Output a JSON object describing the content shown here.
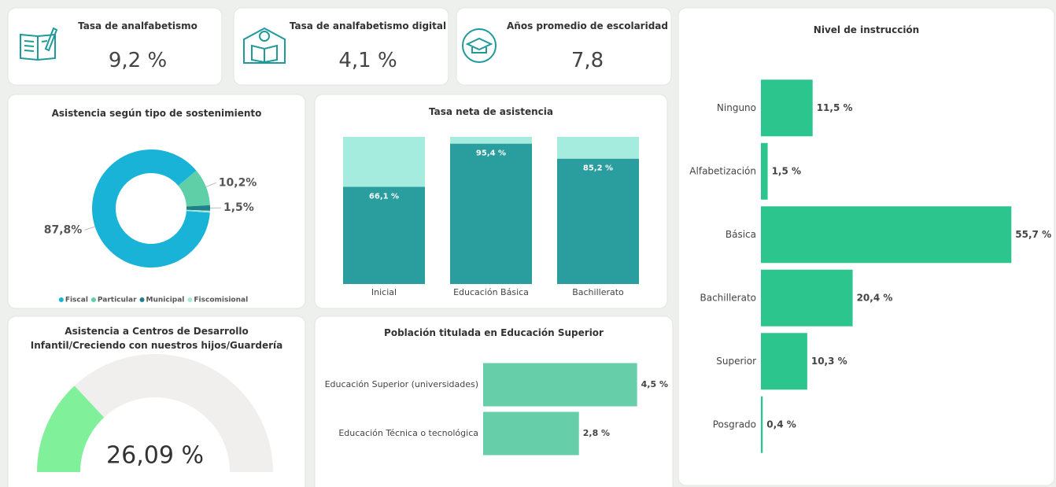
{
  "cards": [
    {
      "title": "Tasa de analfabetismo",
      "value": "9,2 %"
    },
    {
      "title": "Tasa de analfabetismo digital",
      "value": "4,1 %"
    },
    {
      "title": "Años promedio de escolaridad",
      "value": "7,8"
    }
  ],
  "chart_data": [
    {
      "type": "donut",
      "title": "Asistencia según tipo de sostenimiento",
      "categories": [
        "Fiscal",
        "Particular",
        "Municipal",
        "Fiscomisional"
      ],
      "values": [
        87.8,
        10.2,
        1.5,
        0.5
      ],
      "value_labels": [
        "87,8%",
        "10,2%",
        "1,5%",
        null
      ],
      "colors": [
        "#1ab3d8",
        "#5fcfa8",
        "#1f7f8a",
        "#a8e8d8"
      ]
    },
    {
      "type": "stacked_bar",
      "title": "Tasa neta de asistencia",
      "categories": [
        "Inicial",
        "Educación Básica",
        "Bachillerato"
      ],
      "ylim": [
        0,
        100
      ],
      "series": [
        {
          "color": "#2a9d9f",
          "values": [
            66.1,
            95.4,
            85.2
          ],
          "value_labels": [
            "66,1 %",
            "95,4 %",
            "85,2 %"
          ]
        },
        {
          "color": "#a5ebde",
          "values": [
            33.9,
            4.6,
            14.8
          ]
        }
      ]
    },
    {
      "type": "gauge",
      "title": "Asistencia a Centros de Desarrollo Infantil/Creciendo con nuestros hijos/Guardería",
      "value": 26.09,
      "value_label": "26,09 %",
      "range": [
        0,
        100
      ],
      "color": "#80f09a",
      "track_color": "#f0efee"
    },
    {
      "type": "hbar",
      "title": "Población titulada en Educación Superior",
      "categories": [
        "Educación Superior (universidades)",
        "Educación Técnica o tecnológica"
      ],
      "values": [
        4.5,
        2.8
      ],
      "value_labels": [
        "4,5 %",
        "2,8 %"
      ],
      "xlim": [
        0,
        4.6
      ],
      "color": "#66cfaa"
    },
    {
      "type": "hbar",
      "title": "Nivel de instrucción",
      "categories": [
        "Ninguno",
        "Alfabetización",
        "Básica",
        "Bachillerato",
        "Superior",
        "Posgrado"
      ],
      "values": [
        11.5,
        1.5,
        55.7,
        20.4,
        10.3,
        0.4
      ],
      "value_labels": [
        "11,5 %",
        "1,5 %",
        "55,7 %",
        "20,4 %",
        "10,3 %",
        "0,4 %"
      ],
      "xlim": [
        0,
        56
      ],
      "color": "#2dc58e"
    }
  ]
}
